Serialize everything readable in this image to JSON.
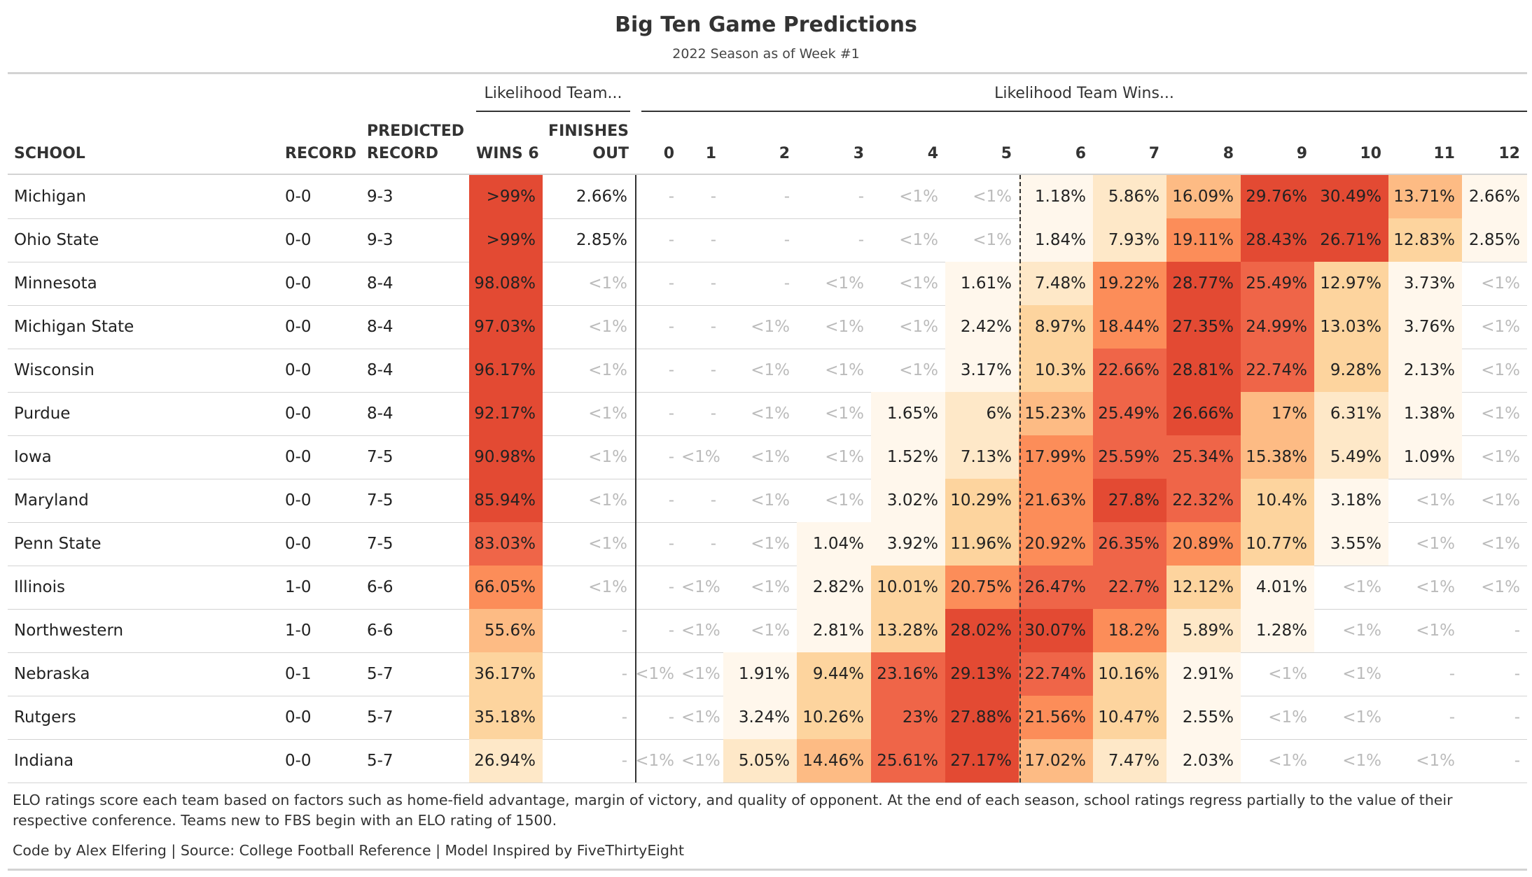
{
  "title": "Big Ten Game Predictions",
  "subtitle": "2022 Season as of Week #1",
  "span_labels": {
    "team": "Likelihood Team...",
    "wins": "Likelihood Team Wins..."
  },
  "columns": {
    "school": "SCHOOL",
    "record": "RECORD",
    "predicted": "PREDICTED\nRECORD",
    "wins6": "WINS 6",
    "finishes": "FINISHES\nOUT",
    "wins": [
      "0",
      "1",
      "2",
      "3",
      "4",
      "5",
      "6",
      "7",
      "8",
      "9",
      "10",
      "11",
      "12"
    ]
  },
  "colors": {
    "scale": [
      "#fff7ec",
      "#fee8c8",
      "#fdd49e",
      "#fdbb84",
      "#fc8d59",
      "#ef6548",
      "#e34a33"
    ],
    "text": "#222222",
    "dim": "#bbbbbb"
  },
  "chart_data": {
    "type": "table",
    "rows": [
      {
        "school": "Michigan",
        "record": "0-0",
        "predicted": "9-3",
        "wins6": ">99%",
        "finishes": "2.66%",
        "wins": [
          "-",
          "-",
          "-",
          "-",
          "<1%",
          "<1%",
          "1.18%",
          "5.86%",
          "16.09%",
          "29.76%",
          "30.49%",
          "13.71%",
          "2.66%"
        ]
      },
      {
        "school": "Ohio State",
        "record": "0-0",
        "predicted": "9-3",
        "wins6": ">99%",
        "finishes": "2.85%",
        "wins": [
          "-",
          "-",
          "-",
          "-",
          "<1%",
          "<1%",
          "1.84%",
          "7.93%",
          "19.11%",
          "28.43%",
          "26.71%",
          "12.83%",
          "2.85%"
        ]
      },
      {
        "school": "Minnesota",
        "record": "0-0",
        "predicted": "8-4",
        "wins6": "98.08%",
        "finishes": "<1%",
        "wins": [
          "-",
          "-",
          "-",
          "<1%",
          "<1%",
          "1.61%",
          "7.48%",
          "19.22%",
          "28.77%",
          "25.49%",
          "12.97%",
          "3.73%",
          "<1%"
        ]
      },
      {
        "school": "Michigan State",
        "record": "0-0",
        "predicted": "8-4",
        "wins6": "97.03%",
        "finishes": "<1%",
        "wins": [
          "-",
          "-",
          "<1%",
          "<1%",
          "<1%",
          "2.42%",
          "8.97%",
          "18.44%",
          "27.35%",
          "24.99%",
          "13.03%",
          "3.76%",
          "<1%"
        ]
      },
      {
        "school": "Wisconsin",
        "record": "0-0",
        "predicted": "8-4",
        "wins6": "96.17%",
        "finishes": "<1%",
        "wins": [
          "-",
          "-",
          "<1%",
          "<1%",
          "<1%",
          "3.17%",
          "10.3%",
          "22.66%",
          "28.81%",
          "22.74%",
          "9.28%",
          "2.13%",
          "<1%"
        ]
      },
      {
        "school": "Purdue",
        "record": "0-0",
        "predicted": "8-4",
        "wins6": "92.17%",
        "finishes": "<1%",
        "wins": [
          "-",
          "-",
          "<1%",
          "<1%",
          "1.65%",
          "6%",
          "15.23%",
          "25.49%",
          "26.66%",
          "17%",
          "6.31%",
          "1.38%",
          "<1%"
        ]
      },
      {
        "school": "Iowa",
        "record": "0-0",
        "predicted": "7-5",
        "wins6": "90.98%",
        "finishes": "<1%",
        "wins": [
          "-",
          "<1%",
          "<1%",
          "<1%",
          "1.52%",
          "7.13%",
          "17.99%",
          "25.59%",
          "25.34%",
          "15.38%",
          "5.49%",
          "1.09%",
          "<1%"
        ]
      },
      {
        "school": "Maryland",
        "record": "0-0",
        "predicted": "7-5",
        "wins6": "85.94%",
        "finishes": "<1%",
        "wins": [
          "-",
          "-",
          "<1%",
          "<1%",
          "3.02%",
          "10.29%",
          "21.63%",
          "27.8%",
          "22.32%",
          "10.4%",
          "3.18%",
          "<1%",
          "<1%"
        ]
      },
      {
        "school": "Penn State",
        "record": "0-0",
        "predicted": "7-5",
        "wins6": "83.03%",
        "finishes": "<1%",
        "wins": [
          "-",
          "-",
          "<1%",
          "1.04%",
          "3.92%",
          "11.96%",
          "20.92%",
          "26.35%",
          "20.89%",
          "10.77%",
          "3.55%",
          "<1%",
          "<1%"
        ]
      },
      {
        "school": "Illinois",
        "record": "1-0",
        "predicted": "6-6",
        "wins6": "66.05%",
        "finishes": "<1%",
        "wins": [
          "-",
          "<1%",
          "<1%",
          "2.82%",
          "10.01%",
          "20.75%",
          "26.47%",
          "22.7%",
          "12.12%",
          "4.01%",
          "<1%",
          "<1%",
          "<1%"
        ]
      },
      {
        "school": "Northwestern",
        "record": "1-0",
        "predicted": "6-6",
        "wins6": "55.6%",
        "finishes": "-",
        "wins": [
          "-",
          "<1%",
          "<1%",
          "2.81%",
          "13.28%",
          "28.02%",
          "30.07%",
          "18.2%",
          "5.89%",
          "1.28%",
          "<1%",
          "<1%",
          "-"
        ]
      },
      {
        "school": "Nebraska",
        "record": "0-1",
        "predicted": "5-7",
        "wins6": "36.17%",
        "finishes": "-",
        "wins": [
          "<1%",
          "<1%",
          "1.91%",
          "9.44%",
          "23.16%",
          "29.13%",
          "22.74%",
          "10.16%",
          "2.91%",
          "<1%",
          "<1%",
          "-",
          "-"
        ]
      },
      {
        "school": "Rutgers",
        "record": "0-0",
        "predicted": "5-7",
        "wins6": "35.18%",
        "finishes": "-",
        "wins": [
          "-",
          "<1%",
          "3.24%",
          "10.26%",
          "23%",
          "27.88%",
          "21.56%",
          "10.47%",
          "2.55%",
          "<1%",
          "<1%",
          "-",
          "-"
        ]
      },
      {
        "school": "Indiana",
        "record": "0-0",
        "predicted": "5-7",
        "wins6": "26.94%",
        "finishes": "-",
        "wins": [
          "<1%",
          "<1%",
          "5.05%",
          "14.46%",
          "25.61%",
          "27.17%",
          "17.02%",
          "7.47%",
          "2.03%",
          "<1%",
          "<1%",
          "<1%",
          "-"
        ]
      }
    ]
  },
  "footnote": "ELO ratings score each team based on factors such as home-field advantage, margin of victory, and quality of opponent. At the end of each season, school ratings regress partially to the value of their respective conference. Teams new to FBS begin with an ELO rating of 1500.",
  "credits": "Code by Alex Elfering | Source: College Football Reference | Model Inspired by FiveThirtyEight"
}
